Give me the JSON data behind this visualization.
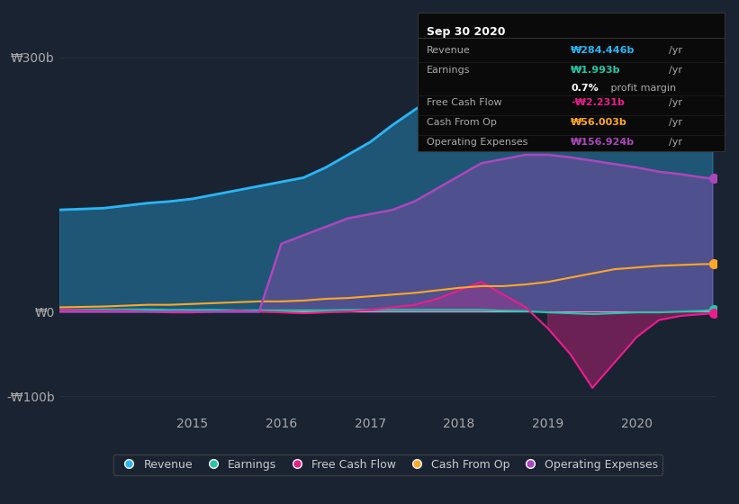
{
  "background_color": "#1a2332",
  "plot_bg_color": "#1a2332",
  "ylim": [
    -120,
    320
  ],
  "yticks": [
    -100,
    0,
    300
  ],
  "ytick_labels": [
    "-₩100b",
    "₩0",
    "₩300b"
  ],
  "xlabel_years": [
    "2015",
    "2016",
    "2017",
    "2018",
    "2019",
    "2020"
  ],
  "colors": {
    "revenue": "#29b6f6",
    "earnings": "#26c6a6",
    "free_cash_flow": "#e91e8c",
    "cash_from_op": "#ffa726",
    "operating_expenses": "#ab47bc"
  },
  "tooltip": {
    "date": "Sep 30 2020",
    "revenue_val": "₩284.446b",
    "earnings_val": "₩1.993b",
    "profit_margin": "0.7%",
    "fcf_val": "-₩2.231b",
    "cash_op_val": "₩56.003b",
    "op_exp_val": "₩156.924b"
  },
  "x": [
    2013.5,
    2014.0,
    2014.25,
    2014.5,
    2014.75,
    2015.0,
    2015.25,
    2015.5,
    2015.75,
    2016.0,
    2016.25,
    2016.5,
    2016.75,
    2017.0,
    2017.25,
    2017.5,
    2017.75,
    2018.0,
    2018.25,
    2018.5,
    2018.75,
    2019.0,
    2019.25,
    2019.5,
    2019.75,
    2020.0,
    2020.25,
    2020.5,
    2020.75,
    2020.85
  ],
  "revenue": [
    120,
    122,
    125,
    128,
    130,
    133,
    138,
    143,
    148,
    153,
    158,
    170,
    185,
    200,
    220,
    238,
    255,
    268,
    278,
    285,
    289,
    290,
    288,
    284,
    280,
    278,
    278,
    279,
    282,
    284
  ],
  "earnings": [
    2,
    2.5,
    2.5,
    2.5,
    2,
    2,
    2,
    1.5,
    1.5,
    1.5,
    1.5,
    1.5,
    2,
    2,
    2,
    2,
    2,
    2,
    2,
    1,
    0.5,
    -1,
    -2,
    -3,
    -2,
    -1,
    -1,
    0,
    1,
    2
  ],
  "free_cash_flow": [
    2,
    1,
    1,
    0,
    -1,
    -1,
    0,
    1,
    0,
    -1,
    -2,
    -1,
    0,
    2,
    5,
    8,
    15,
    25,
    35,
    20,
    5,
    -20,
    -50,
    -90,
    -60,
    -30,
    -10,
    -5,
    -3,
    -2
  ],
  "cash_from_op": [
    5,
    6,
    7,
    8,
    8,
    9,
    10,
    11,
    12,
    12,
    13,
    15,
    16,
    18,
    20,
    22,
    25,
    28,
    30,
    30,
    32,
    35,
    40,
    45,
    50,
    52,
    54,
    55,
    56,
    56
  ],
  "operating_expenses": [
    0,
    0,
    0,
    0,
    0,
    0,
    0,
    0,
    0,
    80,
    90,
    100,
    110,
    115,
    120,
    130,
    145,
    160,
    175,
    180,
    185,
    185,
    182,
    178,
    174,
    170,
    165,
    162,
    158,
    157
  ]
}
